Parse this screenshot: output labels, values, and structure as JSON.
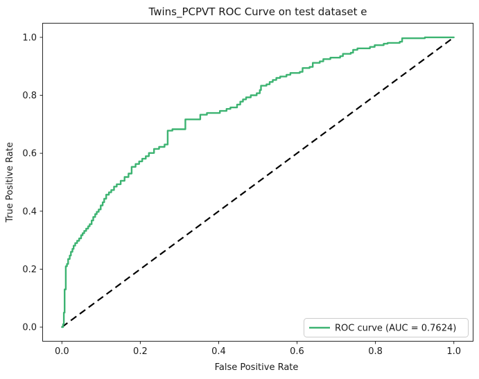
{
  "chart_data": {
    "type": "line",
    "title": "Twins_PCPVT ROC Curve on test dataset e",
    "xlabel": "False Positive Rate",
    "ylabel": "True Positive Rate",
    "x_tick_labels": [
      "0.0",
      "0.2",
      "0.4",
      "0.6",
      "0.8",
      "1.0"
    ],
    "y_tick_labels": [
      "0.0",
      "0.2",
      "0.4",
      "0.6",
      "0.8",
      "1.0"
    ],
    "xlim": [
      0.0,
      1.0
    ],
    "ylim": [
      0.0,
      1.0
    ],
    "grid": false,
    "auc": 0.7624,
    "legend": {
      "position": "lower right",
      "entries": [
        {
          "label": "ROC curve (AUC = 0.7624)",
          "color": "#3cb371",
          "style": "solid"
        }
      ]
    },
    "series": [
      {
        "name": "ROC curve",
        "color": "#3cb371",
        "style": "step",
        "points": [
          [
            0.0,
            0.0
          ],
          [
            0.003,
            0.01
          ],
          [
            0.005,
            0.05
          ],
          [
            0.007,
            0.13
          ],
          [
            0.01,
            0.21
          ],
          [
            0.013,
            0.218
          ],
          [
            0.016,
            0.235
          ],
          [
            0.02,
            0.247
          ],
          [
            0.023,
            0.26
          ],
          [
            0.027,
            0.27
          ],
          [
            0.03,
            0.281
          ],
          [
            0.034,
            0.29
          ],
          [
            0.039,
            0.298
          ],
          [
            0.044,
            0.306
          ],
          [
            0.049,
            0.317
          ],
          [
            0.053,
            0.324
          ],
          [
            0.057,
            0.332
          ],
          [
            0.062,
            0.34
          ],
          [
            0.067,
            0.348
          ],
          [
            0.071,
            0.355
          ],
          [
            0.076,
            0.368
          ],
          [
            0.08,
            0.38
          ],
          [
            0.085,
            0.39
          ],
          [
            0.089,
            0.398
          ],
          [
            0.094,
            0.406
          ],
          [
            0.099,
            0.42
          ],
          [
            0.104,
            0.431
          ],
          [
            0.108,
            0.443
          ],
          [
            0.113,
            0.457
          ],
          [
            0.12,
            0.465
          ],
          [
            0.126,
            0.473
          ],
          [
            0.133,
            0.485
          ],
          [
            0.14,
            0.493
          ],
          [
            0.15,
            0.505
          ],
          [
            0.16,
            0.518
          ],
          [
            0.17,
            0.53
          ],
          [
            0.178,
            0.553
          ],
          [
            0.188,
            0.563
          ],
          [
            0.197,
            0.572
          ],
          [
            0.205,
            0.581
          ],
          [
            0.214,
            0.59
          ],
          [
            0.222,
            0.601
          ],
          [
            0.235,
            0.615
          ],
          [
            0.248,
            0.622
          ],
          [
            0.262,
            0.63
          ],
          [
            0.27,
            0.678
          ],
          [
            0.282,
            0.683
          ],
          [
            0.315,
            0.717
          ],
          [
            0.353,
            0.733
          ],
          [
            0.37,
            0.739
          ],
          [
            0.403,
            0.746
          ],
          [
            0.42,
            0.753
          ],
          [
            0.43,
            0.758
          ],
          [
            0.447,
            0.768
          ],
          [
            0.455,
            0.778
          ],
          [
            0.462,
            0.786
          ],
          [
            0.47,
            0.793
          ],
          [
            0.482,
            0.8
          ],
          [
            0.497,
            0.807
          ],
          [
            0.505,
            0.818
          ],
          [
            0.508,
            0.833
          ],
          [
            0.522,
            0.838
          ],
          [
            0.53,
            0.846
          ],
          [
            0.538,
            0.853
          ],
          [
            0.547,
            0.86
          ],
          [
            0.557,
            0.865
          ],
          [
            0.573,
            0.871
          ],
          [
            0.583,
            0.877
          ],
          [
            0.607,
            0.881
          ],
          [
            0.614,
            0.894
          ],
          [
            0.632,
            0.898
          ],
          [
            0.64,
            0.912
          ],
          [
            0.658,
            0.917
          ],
          [
            0.667,
            0.925
          ],
          [
            0.685,
            0.93
          ],
          [
            0.71,
            0.935
          ],
          [
            0.717,
            0.943
          ],
          [
            0.737,
            0.947
          ],
          [
            0.743,
            0.957
          ],
          [
            0.754,
            0.962
          ],
          [
            0.786,
            0.967
          ],
          [
            0.798,
            0.973
          ],
          [
            0.821,
            0.978
          ],
          [
            0.831,
            0.981
          ],
          [
            0.862,
            0.985
          ],
          [
            0.868,
            0.997
          ],
          [
            0.921,
            0.997
          ],
          [
            0.926,
            1.0
          ],
          [
            1.0,
            1.0
          ]
        ]
      },
      {
        "name": "chance diagonal",
        "color": "#000000",
        "style": "dashed",
        "points": [
          [
            0.0,
            0.0
          ],
          [
            1.0,
            1.0
          ]
        ]
      }
    ],
    "colors": {
      "roc_line": "#3cb371",
      "chance_line": "#000000",
      "spine": "#262626",
      "legend_border": "#cccccc",
      "background": "#ffffff"
    }
  }
}
